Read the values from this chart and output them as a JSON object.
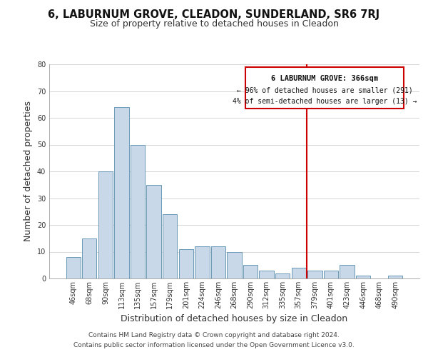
{
  "title": "6, LABURNUM GROVE, CLEADON, SUNDERLAND, SR6 7RJ",
  "subtitle": "Size of property relative to detached houses in Cleadon",
  "xlabel": "Distribution of detached houses by size in Cleadon",
  "ylabel": "Number of detached properties",
  "bar_labels": [
    "46sqm",
    "68sqm",
    "90sqm",
    "113sqm",
    "135sqm",
    "157sqm",
    "179sqm",
    "201sqm",
    "224sqm",
    "246sqm",
    "268sqm",
    "290sqm",
    "312sqm",
    "335sqm",
    "357sqm",
    "379sqm",
    "401sqm",
    "423sqm",
    "446sqm",
    "468sqm",
    "490sqm"
  ],
  "bar_values": [
    8,
    15,
    40,
    64,
    50,
    35,
    24,
    11,
    12,
    12,
    10,
    5,
    3,
    2,
    4,
    3,
    3,
    5,
    1,
    0,
    1
  ],
  "bar_color": "#c8d8e8",
  "bar_edge_color": "#6a9ab8",
  "vline_color": "#cc0000",
  "annotation_title": "6 LABURNUM GROVE: 366sqm",
  "annotation_line1": "← 96% of detached houses are smaller (291)",
  "annotation_line2": "4% of semi-detached houses are larger (13) →",
  "annotation_box_edge": "#cc0000",
  "footer_line1": "Contains HM Land Registry data © Crown copyright and database right 2024.",
  "footer_line2": "Contains public sector information licensed under the Open Government Licence v3.0.",
  "ylim": [
    0,
    80
  ],
  "yticks": [
    0,
    10,
    20,
    30,
    40,
    50,
    60,
    70,
    80
  ],
  "title_fontsize": 10.5,
  "subtitle_fontsize": 9,
  "axis_label_fontsize": 9,
  "tick_fontsize": 7,
  "footer_fontsize": 6.5,
  "annot_fontsize_title": 7.5,
  "annot_fontsize_body": 7
}
